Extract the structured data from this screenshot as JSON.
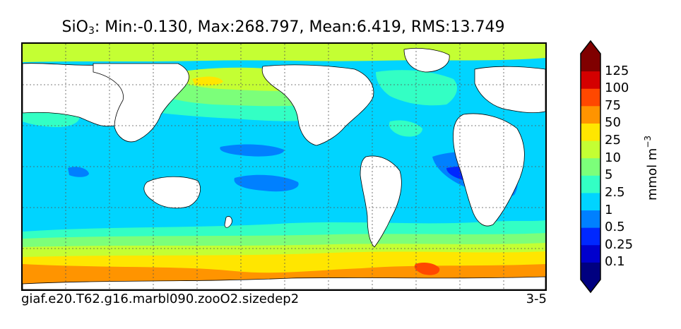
{
  "title": {
    "variable": "SiO",
    "variable_subscript": "3",
    "stats": ": Min:-0.130, Max:268.797, Mean:6.419, RMS:13.749"
  },
  "footer": {
    "case_name": "giaf.e20.T62.g16.marbl090.zooO2.sizedep2",
    "years": "3-5"
  },
  "colorbar": {
    "units_base": "mmol m",
    "units_exponent": "−3",
    "levels": [
      "0.1",
      "0.25",
      "0.5",
      "1",
      "2.5",
      "5",
      "10",
      "25",
      "50",
      "75",
      "100",
      "125"
    ],
    "colors": [
      "#000080",
      "#0000cd",
      "#0028ff",
      "#0080ff",
      "#00d4ff",
      "#33ffc4",
      "#7cff7a",
      "#c4ff33",
      "#ffe600",
      "#ff9400",
      "#ff4800",
      "#d40000",
      "#800000"
    ]
  }
}
